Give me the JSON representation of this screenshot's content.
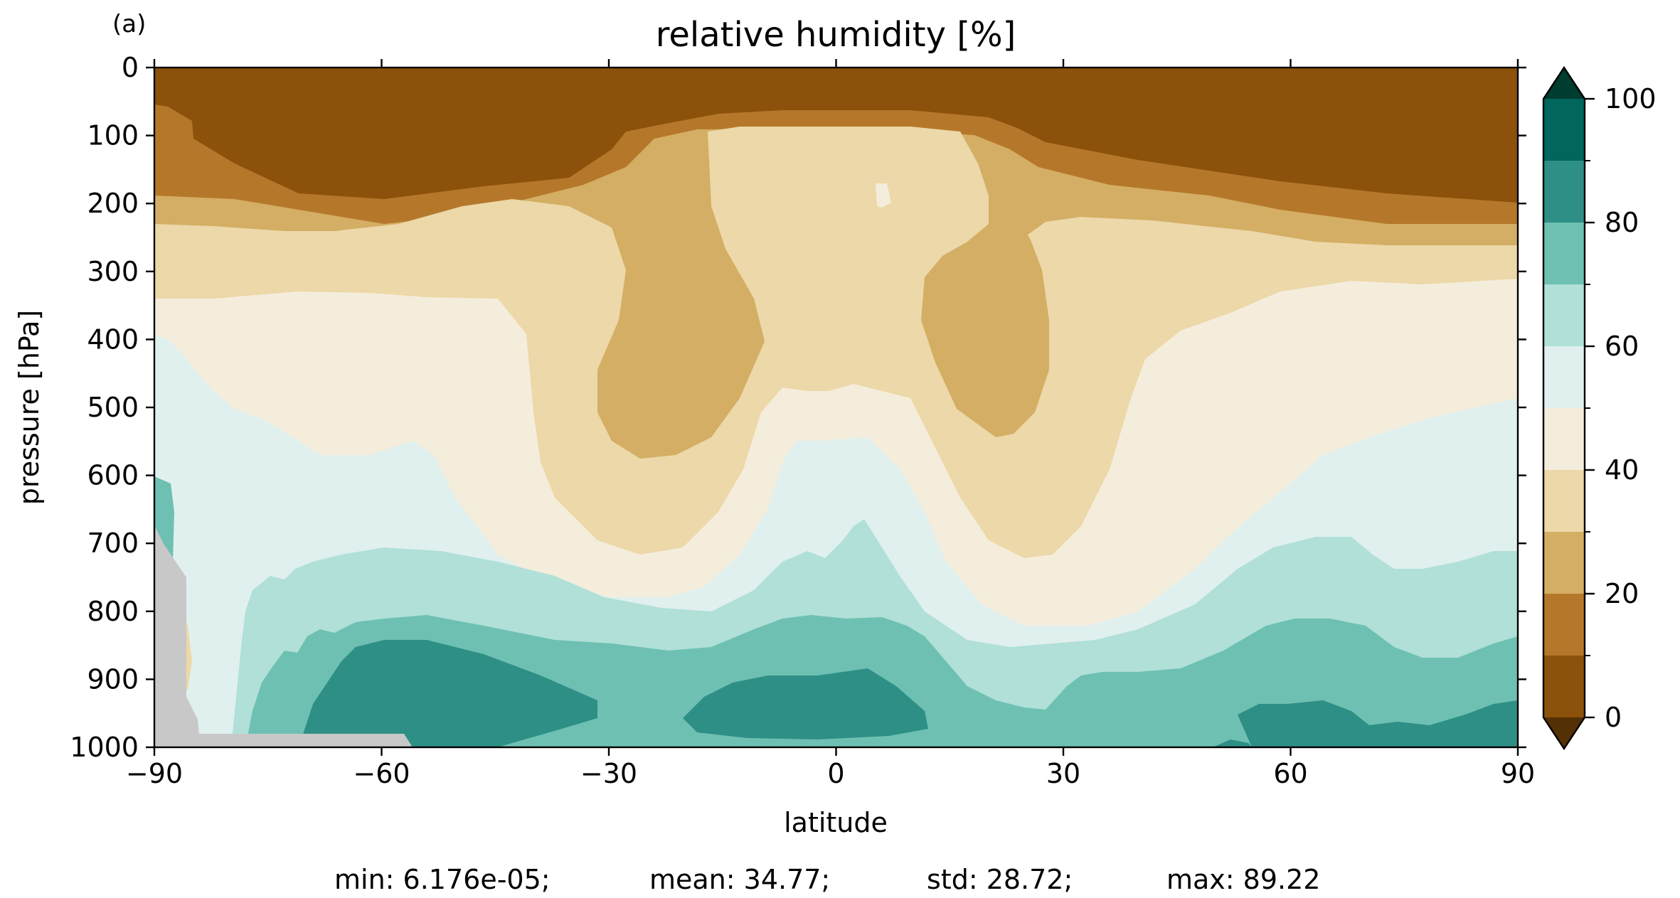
{
  "chart_data": {
    "type": "heatmap",
    "panel_label": "(a)",
    "title": "relative humidity [%]",
    "xlabel": "latitude",
    "ylabel": "pressure [hPa]",
    "xlim": [
      -90,
      90
    ],
    "ylim": [
      1000,
      0
    ],
    "x_ticks": [
      -90,
      -60,
      -30,
      0,
      30,
      60,
      90
    ],
    "x_tick_labels": [
      "−90",
      "−60",
      "−30",
      "0",
      "30",
      "60",
      "90"
    ],
    "y_ticks": [
      0,
      100,
      200,
      300,
      400,
      500,
      600,
      700,
      800,
      900,
      1000
    ],
    "y_tick_labels": [
      "0",
      "100",
      "200",
      "300",
      "400",
      "500",
      "600",
      "700",
      "800",
      "900",
      "1000"
    ],
    "colorbar": {
      "levels": [
        0,
        10,
        20,
        30,
        40,
        50,
        60,
        70,
        80,
        90,
        100
      ],
      "tick_labels": [
        "0",
        "20",
        "40",
        "60",
        "80",
        "100"
      ],
      "colors": [
        "#8c510a",
        "#b5782a",
        "#d4ae64",
        "#ecd8a8",
        "#f5eddc",
        "#e0f0ee",
        "#b0e0d8",
        "#6ec0b2",
        "#2e8f86",
        "#01665e"
      ],
      "under_color": "#543005",
      "over_color": "#003c30",
      "extend": "both"
    },
    "missing_color": "#c8c8c8",
    "stats": {
      "min": "min: 6.176e-05;",
      "mean": "mean: 34.77;",
      "std": "std: 28.72;",
      "max": "max: 89.22"
    }
  }
}
